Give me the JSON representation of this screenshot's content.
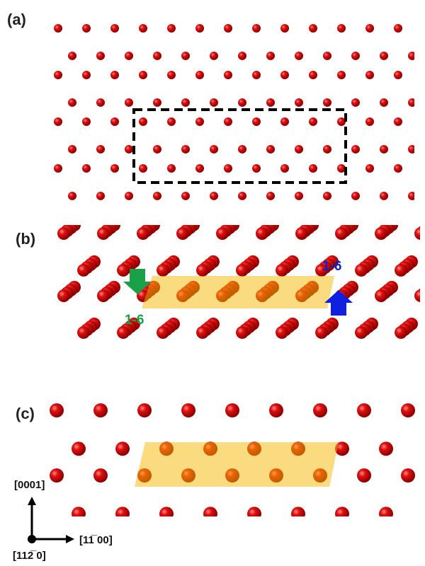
{
  "panels": [
    {
      "label": "(a)"
    },
    {
      "label": "(b)",
      "annotations": [
        "1-6",
        "1-6"
      ]
    },
    {
      "label": "(c)"
    }
  ],
  "axes": {
    "vertical": "[0001]",
    "horizontal": "[11̅ 00]",
    "out_of_plane": "[112̅ 0]"
  }
}
